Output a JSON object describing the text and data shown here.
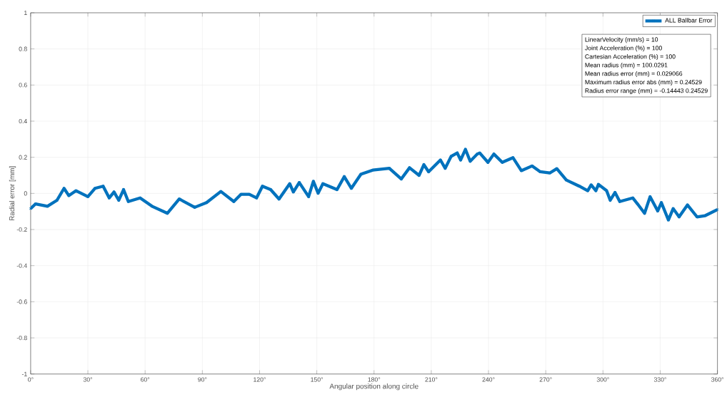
{
  "chart_data": {
    "type": "line",
    "xlabel": "Angular position along circle",
    "ylabel": "Radial error [mm]",
    "xlim": [
      0,
      360
    ],
    "ylim": [
      -1,
      1
    ],
    "xticks": [
      {
        "value": 0,
        "label": "0°"
      },
      {
        "value": 30,
        "label": "30°"
      },
      {
        "value": 60,
        "label": "60°"
      },
      {
        "value": 90,
        "label": "90°"
      },
      {
        "value": 120,
        "label": "120°"
      },
      {
        "value": 150,
        "label": "150°"
      },
      {
        "value": 180,
        "label": "180°"
      },
      {
        "value": 210,
        "label": "210°"
      },
      {
        "value": 240,
        "label": "240°"
      },
      {
        "value": 270,
        "label": "270°"
      },
      {
        "value": 300,
        "label": "300°"
      },
      {
        "value": 330,
        "label": "330°"
      },
      {
        "value": 360,
        "label": "360°"
      }
    ],
    "yticks": [
      -1,
      -0.8,
      -0.6,
      -0.4,
      -0.2,
      0,
      0.2,
      0.4,
      0.6,
      0.8,
      1
    ],
    "grid": true,
    "legend": "top right",
    "marker": "cross",
    "line_style": "solid",
    "series": [
      {
        "name": "ALL Ballbar Error",
        "color": "#0072bd",
        "x": [
          0,
          2.6,
          8.8,
          13.8,
          17.5,
          20,
          23.8,
          30,
          33.7,
          38,
          41.2,
          43.7,
          46.2,
          48.7,
          51.2,
          57.4,
          63.6,
          71.7,
          77.9,
          86,
          92.2,
          99.7,
          106.5,
          110.3,
          114.6,
          118.4,
          121.5,
          125.8,
          130.2,
          135.8,
          137.7,
          140.8,
          145.7,
          148.2,
          150.7,
          153.2,
          160.6,
          164.4,
          168.1,
          173.1,
          179.3,
          188,
          194.3,
          198.6,
          203.6,
          206.1,
          208.6,
          214.8,
          217.3,
          220.4,
          223.6,
          225.4,
          227.9,
          230.4,
          234.1,
          235.4,
          239.7,
          242.8,
          247.2,
          252.8,
          257.2,
          262.8,
          267.1,
          272.1,
          275.8,
          280.8,
          287.6,
          292,
          293.8,
          296.3,
          297.6,
          301.9,
          303.8,
          306.3,
          308.8,
          315.6,
          318.1,
          321.8,
          324.7,
          328.7,
          330.6,
          334.3,
          336.8,
          339.9,
          344.3,
          349.3,
          353.6,
          359.9
        ],
        "values": [
          -0.084,
          -0.058,
          -0.071,
          -0.038,
          0.028,
          -0.012,
          0.015,
          -0.018,
          0.028,
          0.04,
          -0.025,
          0.008,
          -0.038,
          0.021,
          -0.045,
          -0.025,
          -0.071,
          -0.11,
          -0.031,
          -0.077,
          -0.051,
          0.011,
          -0.045,
          -0.005,
          -0.005,
          -0.025,
          0.04,
          0.021,
          -0.031,
          0.054,
          0.008,
          0.06,
          -0.018,
          0.067,
          0.001,
          0.054,
          0.021,
          0.093,
          0.028,
          0.106,
          0.129,
          0.139,
          0.08,
          0.142,
          0.1,
          0.159,
          0.12,
          0.185,
          0.139,
          0.205,
          0.224,
          0.185,
          0.244,
          0.178,
          0.218,
          0.224,
          0.172,
          0.218,
          0.172,
          0.198,
          0.126,
          0.152,
          0.12,
          0.113,
          0.137,
          0.074,
          0.04,
          0.015,
          0.047,
          0.015,
          0.05,
          0.015,
          -0.038,
          0.005,
          -0.045,
          -0.025,
          -0.058,
          -0.11,
          -0.018,
          -0.097,
          -0.051,
          -0.147,
          -0.084,
          -0.13,
          -0.064,
          -0.13,
          -0.123,
          -0.09
        ]
      }
    ],
    "annotations": [
      "LinearVelocity (mm/s)   = 10",
      "Joint Acceleration (%)   = 100",
      "Cartesian Acceleration (%)   = 100",
      "Mean radius (mm) = 100.0291",
      "Mean radius error (mm) = 0.029066",
      "Maximum radius error abs (mm) = 0.24529",
      "Radius error range (mm) = -0.14443     0.24529"
    ]
  }
}
